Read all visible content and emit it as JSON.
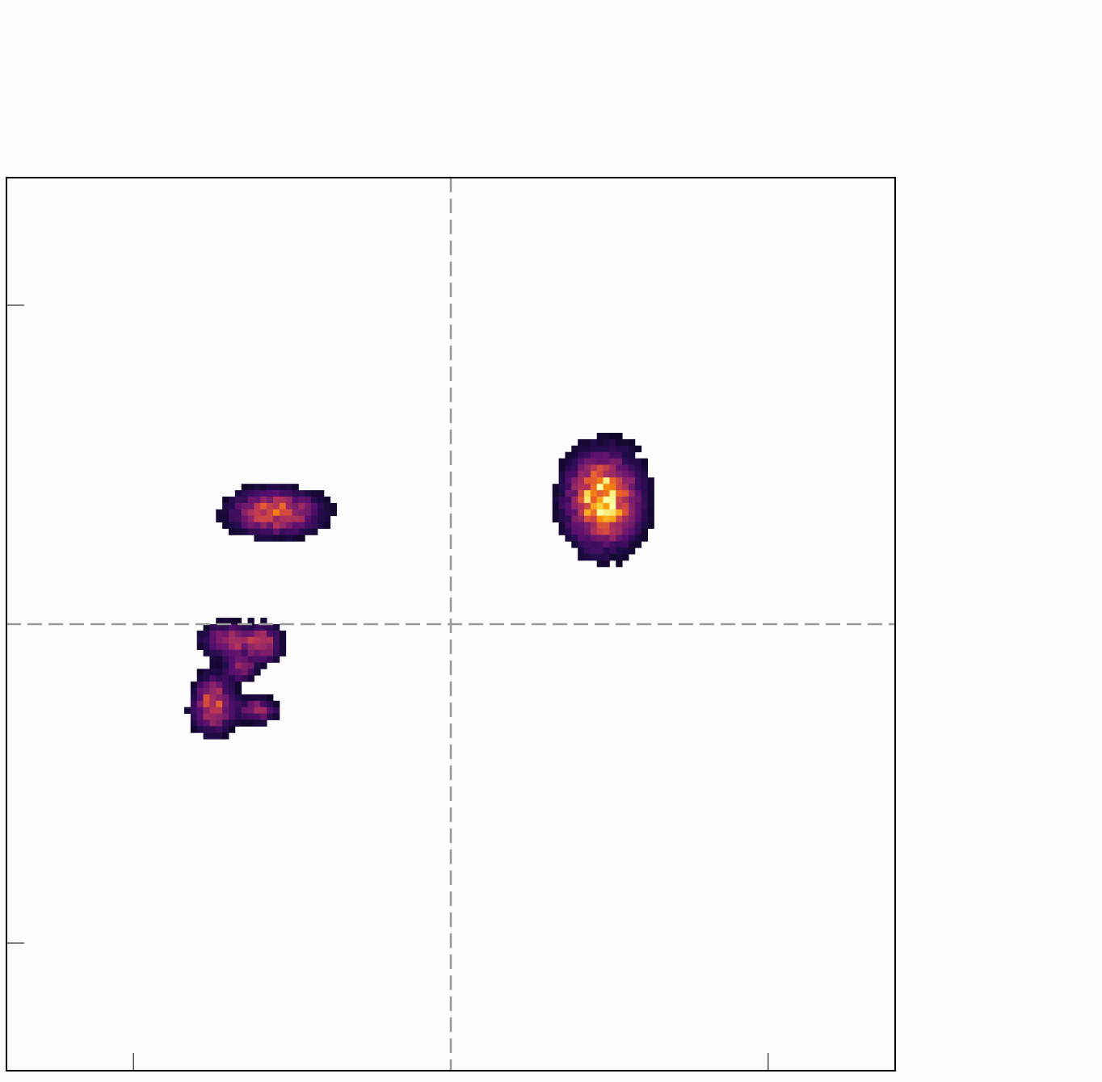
{
  "chart_data": {
    "type": "heatmap",
    "colormap": "inferno",
    "background_color": "#fcfcfc",
    "axes_color": "#000000",
    "crosshair_color": "#999999",
    "xlim": [
      -70,
      70
    ],
    "ylim": [
      -70,
      70
    ],
    "xticks": [
      -50,
      50
    ],
    "yticks": [
      -50,
      50
    ],
    "crosshair": {
      "x": 0,
      "y": 0,
      "style": "dashed"
    },
    "grid": false,
    "blobs": [
      {
        "cx": -27.5,
        "cy": 17.5,
        "sx": 4.5,
        "sy": 2.2,
        "peak": 0.72
      },
      {
        "cx": 24.0,
        "cy": 19.5,
        "sx": 3.6,
        "sy": 4.6,
        "peak": 1.0
      },
      {
        "cx": -35.0,
        "cy": -2.5,
        "sx": 2.6,
        "sy": 1.6,
        "peak": 0.6
      },
      {
        "cx": -29.5,
        "cy": -3.0,
        "sx": 1.8,
        "sy": 1.8,
        "peak": 0.55
      },
      {
        "cx": -33.0,
        "cy": -7.0,
        "sx": 1.6,
        "sy": 1.2,
        "peak": 0.45
      },
      {
        "cx": -37.5,
        "cy": -12.5,
        "sx": 2.0,
        "sy": 2.8,
        "peak": 0.68
      },
      {
        "cx": -30.5,
        "cy": -13.5,
        "sx": 2.0,
        "sy": 1.2,
        "peak": 0.5
      }
    ]
  }
}
